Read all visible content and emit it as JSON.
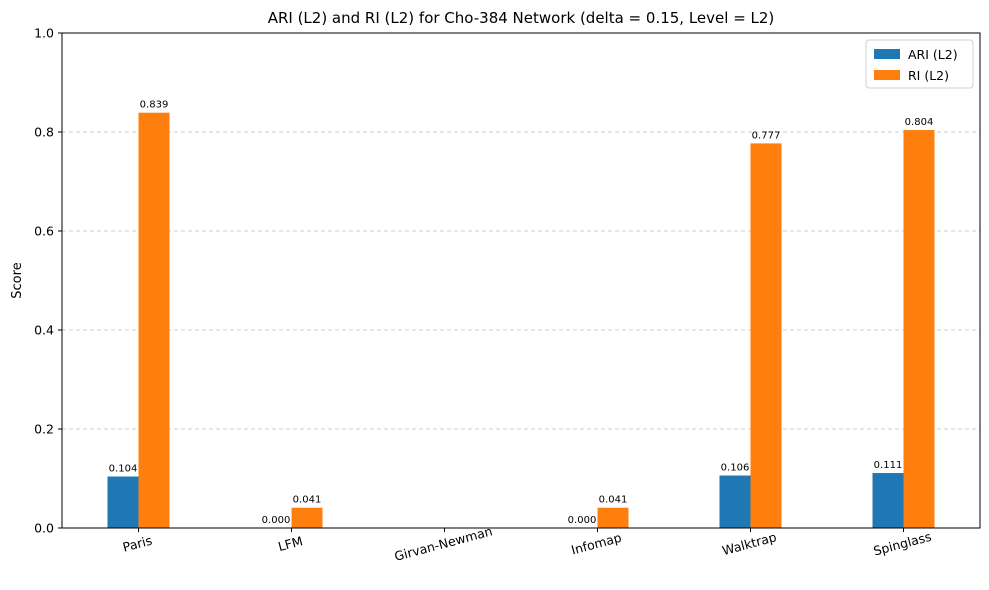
{
  "chart_data": {
    "type": "bar",
    "title": "ARI (L2) and RI (L2) for Cho-384 Network (delta = 0.15, Level = L2)",
    "xlabel": "",
    "ylabel": "Score",
    "ylim": [
      0,
      1.0
    ],
    "yticks": [
      "0.0",
      "0.2",
      "0.4",
      "0.6",
      "0.8",
      "1.0"
    ],
    "ytick_values": [
      0,
      0.2,
      0.4,
      0.6,
      0.8,
      1.0
    ],
    "grid": "horizontal dashed",
    "legend_position": "top-right",
    "categories": [
      "Paris",
      "LFM",
      "Girvan-Newman",
      "Infomap",
      "Walktrap",
      "Spinglass"
    ],
    "series": [
      {
        "name": "ARI (L2)",
        "color": "#1f77b4",
        "values": [
          0.104,
          0.0,
          null,
          0.0,
          0.106,
          0.111
        ],
        "labels": [
          "0.104",
          "0.000",
          "",
          "0.000",
          "0.106",
          "0.111"
        ]
      },
      {
        "name": "RI (L2)",
        "color": "#ff7f0e",
        "values": [
          0.839,
          0.041,
          null,
          0.041,
          0.777,
          0.804
        ],
        "labels": [
          "0.839",
          "0.041",
          "",
          "0.041",
          "0.777",
          "0.804"
        ]
      }
    ]
  }
}
